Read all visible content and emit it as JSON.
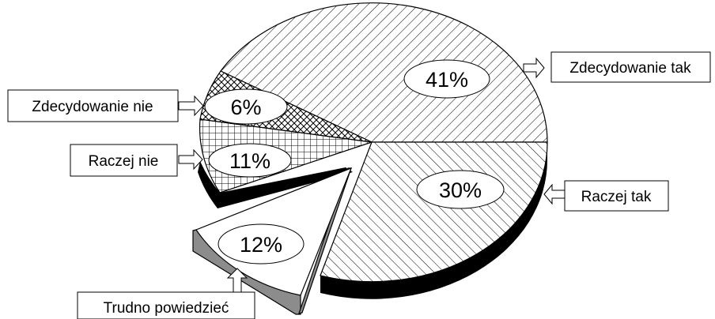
{
  "chart_data": {
    "type": "pie",
    "title": "",
    "slices": [
      {
        "label": "Zdecydowanie tak",
        "value": 41,
        "value_label": "41%",
        "pattern": "diag-back"
      },
      {
        "label": "Raczej tak",
        "value": 30,
        "value_label": "30%",
        "pattern": "diag-fwd"
      },
      {
        "label": "Trudno powiedzieć",
        "value": 12,
        "value_label": "12%",
        "pattern": "solid-white",
        "exploded": true
      },
      {
        "label": "Raczej nie",
        "value": 11,
        "value_label": "11%",
        "pattern": "grid"
      },
      {
        "label": "Zdecydowanie nie",
        "value": 6,
        "value_label": "6%",
        "pattern": "crosshatch"
      }
    ],
    "three_d": true,
    "legend": "none",
    "colors": {
      "edge": "#000000",
      "side_dark": "#000000",
      "side_grey": "#8c8c8c",
      "fill": "#ffffff"
    }
  }
}
